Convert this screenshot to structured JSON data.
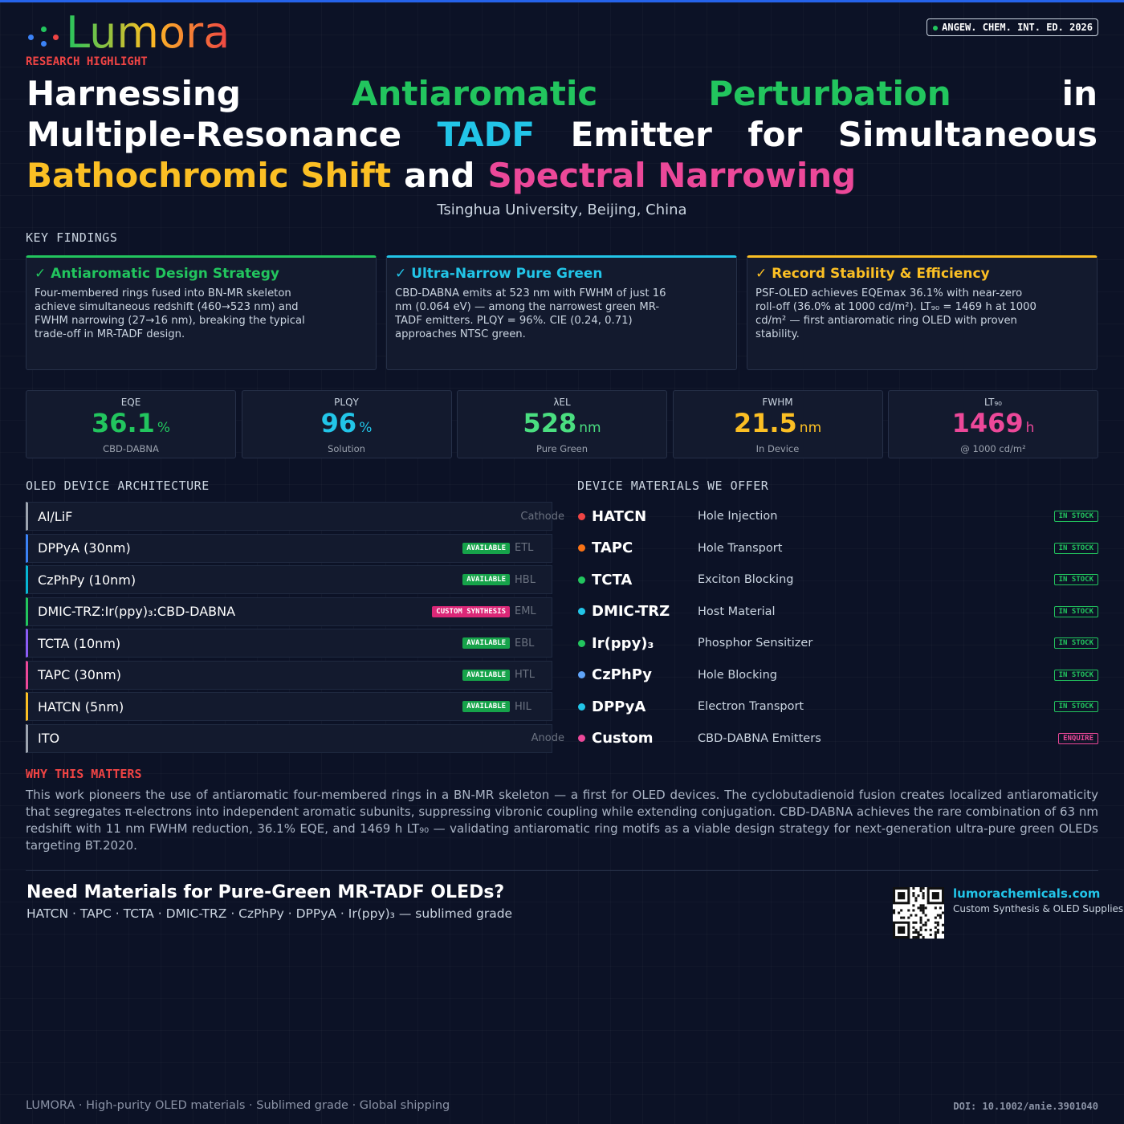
{
  "brand": {
    "name": "Lumora",
    "tagline": "RESEARCH HIGHLIGHT"
  },
  "journal": "ANGEW. CHEM. INT. ED. 2026",
  "title": {
    "lines": [
      [
        "Harnessing",
        "Antiaromatic",
        "Perturbation",
        "in"
      ],
      [
        "Multiple-Resonance",
        "TADF",
        "Emitter",
        "for",
        "Simultaneous"
      ],
      [
        "Bathochromic Shift",
        "and",
        "Spectral Narrowing"
      ]
    ]
  },
  "affiliation": "Tsinghua University, Beijing, China",
  "key_findings": {
    "heading": "KEY FINDINGS",
    "cards": [
      {
        "title": "Antiaromatic Design Strategy",
        "body": "Four-membered rings fused into BN-MR skeleton achieve simultaneous redshift (460→523 nm) and FWHM narrowing (27→16 nm), breaking the typical trade-off in MR-TADF design.",
        "color": "#22c55e"
      },
      {
        "title": "Ultra-Narrow Pure Green",
        "body": "CBD-DABNA emits at 523 nm with FWHM of just 16 nm (0.064 eV) — among the narrowest green MR-TADF emitters. PLQY = 96%. CIE (0.24, 0.71) approaches NTSC green.",
        "color": "#22c5e8"
      },
      {
        "title": "Record Stability & Efficiency",
        "body": "PSF-OLED achieves EQEmax 36.1% with near-zero roll-off (36.0% at 1000 cd/m²). LT₉₀ = 1469 h at 1000 cd/m² — first antiaromatic ring OLED with proven stability.",
        "color": "#fbbf24"
      }
    ]
  },
  "metrics": [
    {
      "label": "EQE",
      "value": "36.1",
      "unit": "%",
      "note": "CBD-DABNA",
      "color": "#22c55e"
    },
    {
      "label": "PLQY",
      "value": "96",
      "unit": "%",
      "note": "Solution",
      "color": "#22c5e8"
    },
    {
      "label": "λEL",
      "value": "528",
      "unit": "nm",
      "note": "Pure Green",
      "color": "#4ade80"
    },
    {
      "label": "FWHM",
      "value": "21.5",
      "unit": "nm",
      "note": "In Device",
      "color": "#fbbf24"
    },
    {
      "label": "LT₉₀",
      "value": "1469",
      "unit": "h",
      "note": "@ 1000 cd/m²",
      "color": "#ec4899"
    }
  ],
  "architecture": {
    "heading": "OLED DEVICE ARCHITECTURE",
    "layers": [
      {
        "name": "Al/LiF",
        "role": "Cathode",
        "color": "#9ca3af"
      },
      {
        "name": "DPPyA (30nm)",
        "badge": "AVAILABLE",
        "role": "ETL",
        "color": "#3b82f6"
      },
      {
        "name": "CzPhPy (10nm)",
        "badge": "AVAILABLE",
        "role": "HBL",
        "color": "#06b6d4"
      },
      {
        "name": "DMIC-TRZ:Ir(ppy)₃:CBD-DABNA",
        "badge": "CUSTOM SYNTHESIS",
        "role": "EML",
        "color": "#22c55e"
      },
      {
        "name": "TCTA (10nm)",
        "badge": "AVAILABLE",
        "role": "EBL",
        "color": "#8b5cf6"
      },
      {
        "name": "TAPC (30nm)",
        "badge": "AVAILABLE",
        "role": "HTL",
        "color": "#ec4899"
      },
      {
        "name": "HATCN (5nm)",
        "badge": "AVAILABLE",
        "role": "HIL",
        "color": "#fbbf24"
      },
      {
        "name": "ITO",
        "role": "Anode",
        "color": "#9ca3af"
      }
    ]
  },
  "materials": {
    "heading": "DEVICE MATERIALS WE OFFER",
    "items": [
      {
        "name": "HATCN",
        "function": "Hole Injection",
        "status": "IN STOCK",
        "color": "#ef4444"
      },
      {
        "name": "TAPC",
        "function": "Hole Transport",
        "status": "IN STOCK",
        "color": "#f97316"
      },
      {
        "name": "TCTA",
        "function": "Exciton Blocking",
        "status": "IN STOCK",
        "color": "#22c55e"
      },
      {
        "name": "DMIC-TRZ",
        "function": "Host Material",
        "status": "IN STOCK",
        "color": "#22c5e8"
      },
      {
        "name": "Ir(ppy)₃",
        "function": "Phosphor Sensitizer",
        "status": "IN STOCK",
        "color": "#22c55e"
      },
      {
        "name": "CzPhPy",
        "function": "Hole Blocking",
        "status": "IN STOCK",
        "color": "#60a5fa"
      },
      {
        "name": "DPPyA",
        "function": "Electron Transport",
        "status": "IN STOCK",
        "color": "#22c5e8"
      },
      {
        "name": "Custom",
        "function": "CBD-DABNA Emitters",
        "status": "ENQUIRE",
        "color": "#ec4899"
      }
    ]
  },
  "why": {
    "heading": "WHY THIS MATTERS",
    "body": "This work pioneers the use of antiaromatic four-membered rings in a BN-MR skeleton — a first for OLED devices. The cyclobutadienoid fusion creates localized antiaromaticity that segregates π-electrons into independent aromatic subunits, suppressing vibronic coupling while extending conjugation. CBD-DABNA achieves the rare combination of 63 nm redshift with 11 nm FWHM reduction, 36.1% EQE, and 1469 h LT₉₀ — validating antiaromatic ring motifs as a viable design strategy for next-generation ultra-pure green OLEDs targeting BT.2020."
  },
  "cta": {
    "title": "Need Materials for Pure-Green MR-TADF OLEDs?",
    "subtitle": "HATCN · TAPC · TCTA · DMIC-TRZ · CzPhPy · DPPyA · Ir(ppy)₃ — sublimed grade",
    "url": "lumorachemicals.com",
    "url_note": "Custom Synthesis & OLED Supplies"
  },
  "footer": {
    "left": "LUMORA · High-purity OLED materials · Sublimed grade · Global shipping",
    "doi": "DOI: 10.1002/anie.3901040"
  }
}
